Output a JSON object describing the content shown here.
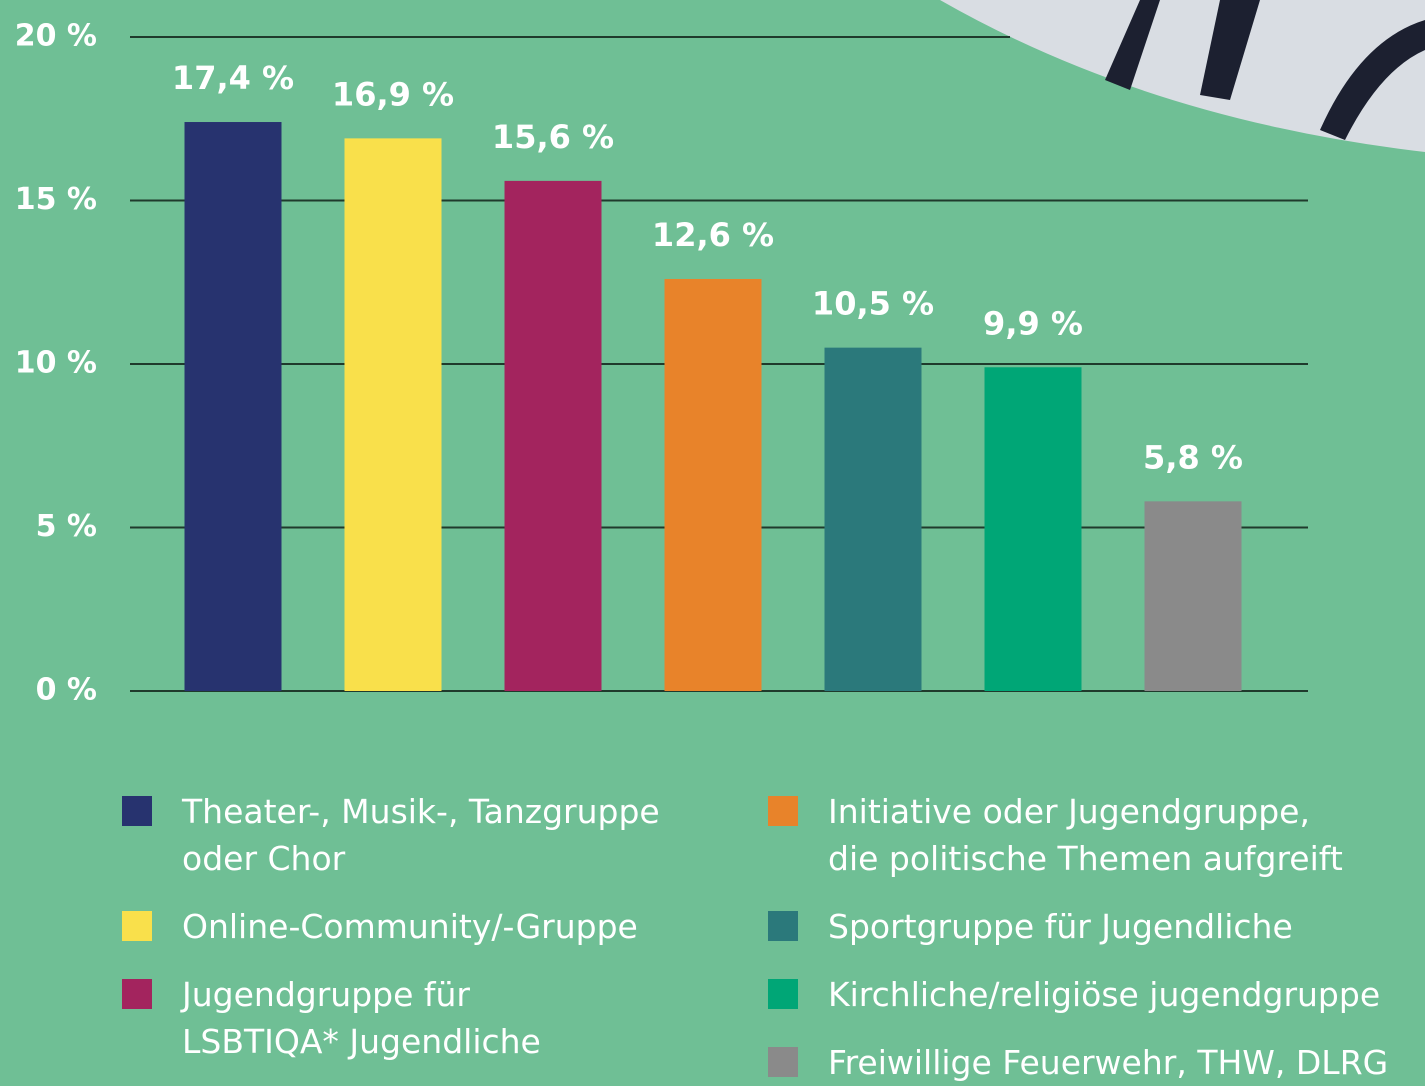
{
  "chart_data": {
    "type": "bar",
    "categories": [
      "Theater-, Musik-, Tanzgruppe\noder Chor",
      "Online-Community/-Gruppe",
      "Jugendgruppe für\nLSBTIQA* Jugendliche",
      "Initiative oder Jugendgruppe,\ndie politische Themen aufgreift",
      "Sportgruppe für Jugendliche",
      "Kirchliche/religiöse jugendgruppe",
      "Freiwillige Feuerwehr, THW, DLRG"
    ],
    "values": [
      17.4,
      16.9,
      15.6,
      12.6,
      10.5,
      9.9,
      5.8
    ],
    "value_labels": [
      "17,4 %",
      "16,9 %",
      "15,6 %",
      "12,6 %",
      "10,5 %",
      "9,9 %",
      "5,8 %"
    ],
    "colors": [
      "#27336f",
      "#f9e04b",
      "#a3245e",
      "#e8832a",
      "#2b797b",
      "#00a676",
      "#8a8a8a"
    ],
    "ylim": [
      0,
      20
    ],
    "yticks": [
      {
        "value": 0,
        "label": "0 %"
      },
      {
        "value": 5,
        "label": "5 %"
      },
      {
        "value": 10,
        "label": "10 %"
      },
      {
        "value": 15,
        "label": "15 %"
      },
      {
        "value": 20,
        "label": "20 %"
      }
    ],
    "grid": true
  }
}
